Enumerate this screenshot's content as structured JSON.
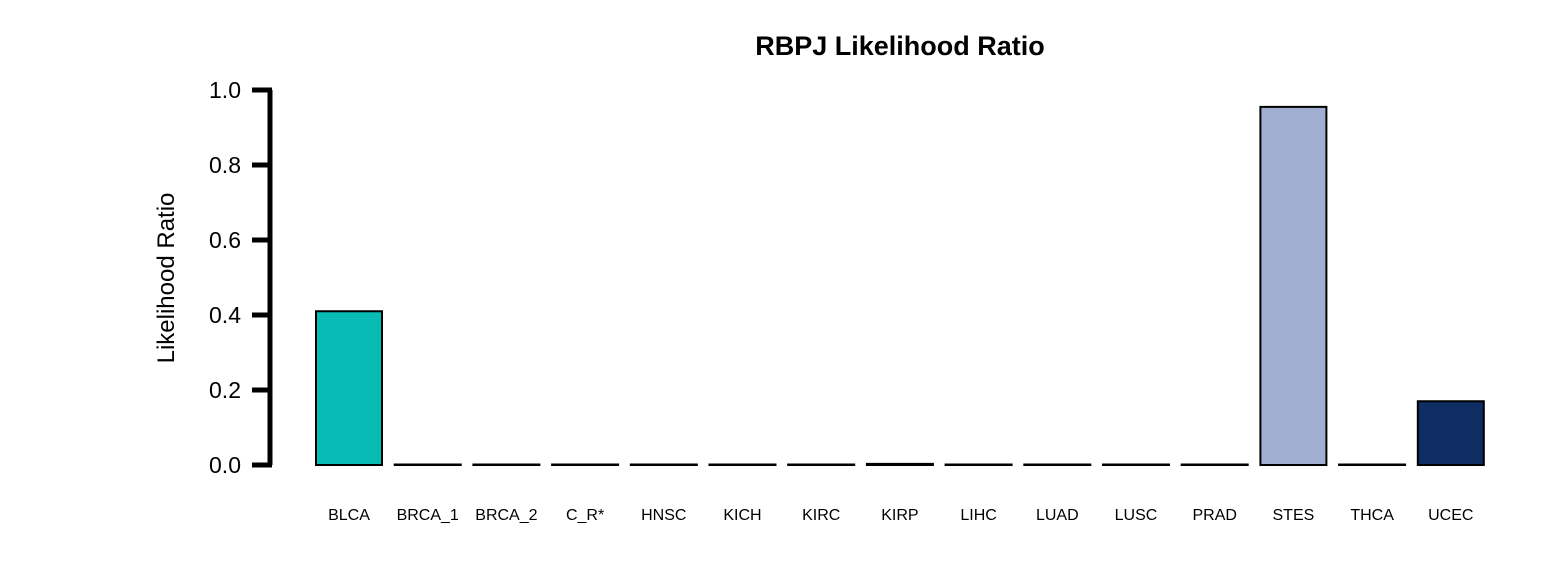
{
  "chart_data": {
    "type": "bar",
    "title": "RBPJ Likelihood Ratio",
    "xlabel": "",
    "ylabel": "Likelihood Ratio",
    "ylim": [
      0,
      1.0
    ],
    "yticks": [
      "0.0",
      "0.2",
      "0.4",
      "0.6",
      "0.8",
      "1.0"
    ],
    "categories": [
      "BLCA",
      "BRCA_1",
      "BRCA_2",
      "C_R*",
      "HNSC",
      "KICH",
      "KIRC",
      "KIRP",
      "LIHC",
      "LUAD",
      "LUSC",
      "PRAD",
      "STES",
      "THCA",
      "UCEC"
    ],
    "values": [
      0.41,
      0.0,
      0.0,
      0.0,
      0.0,
      0.0,
      0.0,
      0.003,
      0.0,
      0.0,
      0.0,
      0.0,
      0.955,
      0.0,
      0.17
    ],
    "colors": [
      "#08BBB5",
      "#FFFFFF",
      "#FFFFFF",
      "#FFFFFF",
      "#FFFFFF",
      "#FFFFFF",
      "#FFFFFF",
      "#FFFFFF",
      "#FFFFFF",
      "#FFFFFF",
      "#FFFFFF",
      "#FFFFFF",
      "#A0AED2",
      "#FFFFFF",
      "#0E2D63"
    ],
    "grid": false,
    "legend": "none"
  }
}
